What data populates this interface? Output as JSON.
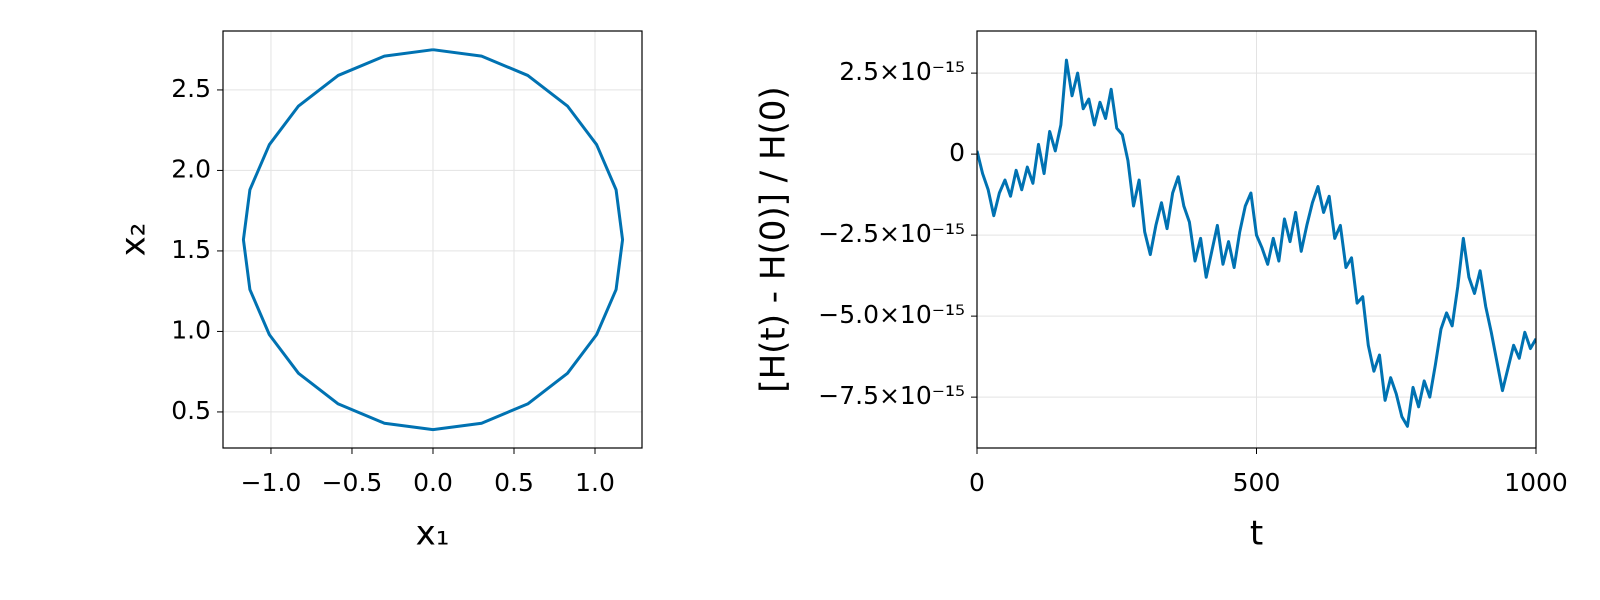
{
  "chart_data": [
    {
      "type": "line",
      "xlabel": "x₁",
      "ylabel": "x₂",
      "color": "#0072b2",
      "grid": true,
      "xlim": [
        -1.296,
        1.29
      ],
      "ylim": [
        0.276,
        2.866
      ],
      "xticks": [
        {
          "value": -1.0,
          "label": "−1.0"
        },
        {
          "value": -0.5,
          "label": "−0.5"
        },
        {
          "value": 0.0,
          "label": "0.0"
        },
        0.5,
        {
          "value": 1.0,
          "label": "1.0"
        }
      ],
      "yticks": [
        0.5,
        {
          "value": 1.0,
          "label": "1.0"
        },
        1.5,
        {
          "value": 2.0,
          "label": "2.0"
        },
        2.5
      ],
      "x": [
        0,
        0.3,
        0.585,
        0.83,
        1.01,
        1.13,
        1.17,
        1.13,
        1.01,
        0.83,
        0.585,
        0.3,
        0,
        -0.3,
        -0.585,
        -0.83,
        -1.01,
        -1.13,
        -1.17,
        -1.13,
        -1.01,
        -0.83,
        -0.585,
        -0.3,
        0
      ],
      "values": [
        2.75,
        2.71,
        2.59,
        2.4,
        2.16,
        1.88,
        1.57,
        1.26,
        0.98,
        0.74,
        0.55,
        0.43,
        0.39,
        0.43,
        0.55,
        0.74,
        0.98,
        1.26,
        1.57,
        1.88,
        2.16,
        2.4,
        2.59,
        2.71,
        2.75
      ]
    },
    {
      "type": "line",
      "xlabel": "t",
      "ylabel": "[H(t) - H(0)] / H(0)",
      "color": "#0072b2",
      "grid": true,
      "xlim": [
        0,
        1000
      ],
      "ylim": [
        -9.07e-15,
        3.8e-15
      ],
      "xticks": [
        0,
        500,
        1000
      ],
      "yticks": [
        {
          "value": 2.5e-15,
          "label": "2.5×10⁻¹⁵"
        },
        0,
        {
          "value": -2.5e-15,
          "label": "−2.5×10⁻¹⁵"
        },
        {
          "value": -5e-15,
          "label": "−5.0×10⁻¹⁵"
        },
        {
          "value": -7.5e-15,
          "label": "−7.5×10⁻¹⁵"
        }
      ],
      "x": [
        0,
        10,
        20,
        30,
        40,
        50,
        60,
        70,
        80,
        90,
        100,
        110,
        120,
        130,
        140,
        150,
        160,
        170,
        180,
        190,
        200,
        210,
        220,
        230,
        240,
        250,
        260,
        270,
        280,
        290,
        300,
        310,
        320,
        330,
        340,
        350,
        360,
        370,
        380,
        390,
        400,
        410,
        420,
        430,
        440,
        450,
        460,
        470,
        480,
        490,
        500,
        510,
        520,
        530,
        540,
        550,
        560,
        570,
        580,
        590,
        600,
        610,
        620,
        630,
        640,
        650,
        660,
        670,
        680,
        690,
        700,
        710,
        720,
        730,
        740,
        750,
        760,
        770,
        780,
        790,
        800,
        810,
        820,
        830,
        840,
        850,
        860,
        870,
        880,
        890,
        900,
        910,
        920,
        930,
        940,
        950,
        960,
        970,
        980,
        990,
        1000
      ],
      "values": [
        1e-16,
        -6e-16,
        -1.1e-15,
        -1.9e-15,
        -1.2e-15,
        -8e-16,
        -1.3e-15,
        -5e-16,
        -1.1e-15,
        -4e-16,
        -9e-16,
        3e-16,
        -6e-16,
        7e-16,
        1e-16,
        9e-16,
        2.9e-15,
        1.8e-15,
        2.5e-15,
        1.4e-15,
        1.7e-15,
        9e-16,
        1.6e-15,
        1.1e-15,
        2e-15,
        8e-16,
        6e-16,
        -2e-16,
        -1.6e-15,
        -8e-16,
        -2.4e-15,
        -3.1e-15,
        -2.2e-15,
        -1.5e-15,
        -2.3e-15,
        -1.2e-15,
        -7e-16,
        -1.6e-15,
        -2.1e-15,
        -3.3e-15,
        -2.6e-15,
        -3.8e-15,
        -3e-15,
        -2.2e-15,
        -3.4e-15,
        -2.7e-15,
        -3.5e-15,
        -2.4e-15,
        -1.6e-15,
        -1.2e-15,
        -2.5e-15,
        -2.9e-15,
        -3.4e-15,
        -2.6e-15,
        -3.3e-15,
        -2e-15,
        -2.7e-15,
        -1.8e-15,
        -3e-15,
        -2.2e-15,
        -1.5e-15,
        -1e-15,
        -1.8e-15,
        -1.3e-15,
        -2.6e-15,
        -2.2e-15,
        -3.5e-15,
        -3.2e-15,
        -4.6e-15,
        -4.4e-15,
        -5.9e-15,
        -6.7e-15,
        -6.2e-15,
        -7.6e-15,
        -6.9e-15,
        -7.4e-15,
        -8.1e-15,
        -8.4e-15,
        -7.2e-15,
        -7.8e-15,
        -7e-15,
        -7.5e-15,
        -6.5e-15,
        -5.4e-15,
        -4.9e-15,
        -5.3e-15,
        -4.1e-15,
        -2.6e-15,
        -3.8e-15,
        -4.3e-15,
        -3.6e-15,
        -4.7e-15,
        -5.5e-15,
        -6.4e-15,
        -7.3e-15,
        -6.6e-15,
        -5.9e-15,
        -6.3e-15,
        -5.5e-15,
        -6e-15,
        -5.7e-15
      ]
    }
  ]
}
